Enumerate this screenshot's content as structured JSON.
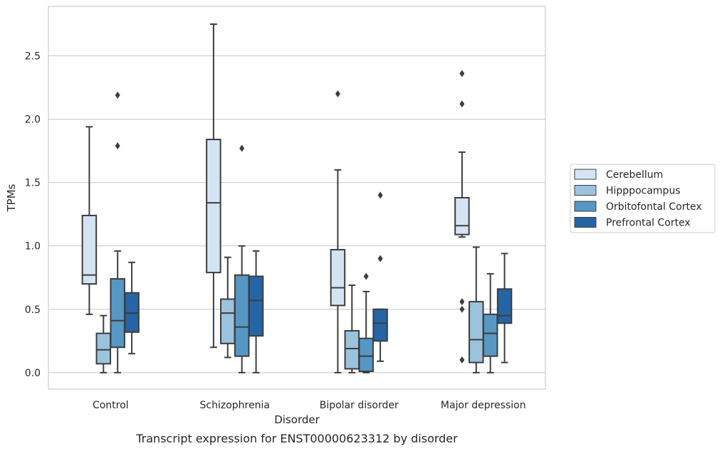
{
  "chart_data": {
    "type": "box",
    "title": "",
    "caption": "Transcript expression for ENST00000623312 by disorder",
    "xlabel": "Disorder",
    "ylabel": "TPMs",
    "ylim": [
      -0.13,
      2.89
    ],
    "yticks": [
      0.0,
      0.5,
      1.0,
      1.5,
      2.0,
      2.5
    ],
    "ytick_labels": [
      "0.0",
      "0.5",
      "1.0",
      "1.5",
      "2.0",
      "2.5"
    ],
    "grid": "horizontal",
    "legend_position": "right",
    "categories": [
      "Control",
      "Schizophrenia",
      "Bipolar disorder",
      "Major depression"
    ],
    "series": [
      {
        "name": "Cerebellum",
        "color": "#d5e4f3",
        "boxes": [
          {
            "whisker_low": 0.46,
            "q1": 0.7,
            "median": 0.77,
            "q3": 1.24,
            "whisker_high": 1.94,
            "outliers": []
          },
          {
            "whisker_low": 0.2,
            "q1": 0.79,
            "median": 1.34,
            "q3": 1.84,
            "whisker_high": 2.75,
            "outliers": []
          },
          {
            "whisker_low": 0.0,
            "q1": 0.53,
            "median": 0.67,
            "q3": 0.97,
            "whisker_high": 1.6,
            "outliers": [
              2.2
            ]
          },
          {
            "whisker_low": 1.07,
            "q1": 1.09,
            "median": 1.16,
            "q3": 1.38,
            "whisker_high": 1.74,
            "outliers": [
              2.12,
              2.36,
              0.56,
              0.5,
              0.1
            ]
          }
        ]
      },
      {
        "name": "Hipppocampus",
        "color": "#9bc3de",
        "boxes": [
          {
            "whisker_low": 0.0,
            "q1": 0.07,
            "median": 0.18,
            "q3": 0.31,
            "whisker_high": 0.45,
            "outliers": []
          },
          {
            "whisker_low": 0.12,
            "q1": 0.23,
            "median": 0.47,
            "q3": 0.58,
            "whisker_high": 0.91,
            "outliers": []
          },
          {
            "whisker_low": 0.0,
            "q1": 0.03,
            "median": 0.19,
            "q3": 0.33,
            "whisker_high": 0.69,
            "outliers": []
          },
          {
            "whisker_low": 0.0,
            "q1": 0.08,
            "median": 0.26,
            "q3": 0.56,
            "whisker_high": 0.99,
            "outliers": []
          }
        ]
      },
      {
        "name": "Orbitofontal Cortex",
        "color": "#5697c4",
        "boxes": [
          {
            "whisker_low": 0.0,
            "q1": 0.2,
            "median": 0.41,
            "q3": 0.74,
            "whisker_high": 0.96,
            "outliers": [
              1.79,
              2.19
            ]
          },
          {
            "whisker_low": 0.0,
            "q1": 0.13,
            "median": 0.36,
            "q3": 0.77,
            "whisker_high": 1.0,
            "outliers": [
              1.77
            ]
          },
          {
            "whisker_low": 0.0,
            "q1": 0.01,
            "median": 0.13,
            "q3": 0.27,
            "whisker_high": 0.64,
            "outliers": [
              0.76
            ]
          },
          {
            "whisker_low": 0.0,
            "q1": 0.13,
            "median": 0.31,
            "q3": 0.46,
            "whisker_high": 0.78,
            "outliers": []
          }
        ]
      },
      {
        "name": "Prefrontal Cortex",
        "color": "#2565a5",
        "boxes": [
          {
            "whisker_low": 0.15,
            "q1": 0.32,
            "median": 0.47,
            "q3": 0.63,
            "whisker_high": 0.87,
            "outliers": []
          },
          {
            "whisker_low": 0.0,
            "q1": 0.29,
            "median": 0.57,
            "q3": 0.76,
            "whisker_high": 0.96,
            "outliers": []
          },
          {
            "whisker_low": 0.09,
            "q1": 0.25,
            "median": 0.39,
            "q3": 0.5,
            "whisker_high": 0.5,
            "outliers": [
              0.9,
              1.4
            ]
          },
          {
            "whisker_low": 0.08,
            "q1": 0.39,
            "median": 0.45,
            "q3": 0.66,
            "whisker_high": 0.94,
            "outliers": []
          }
        ]
      }
    ]
  }
}
